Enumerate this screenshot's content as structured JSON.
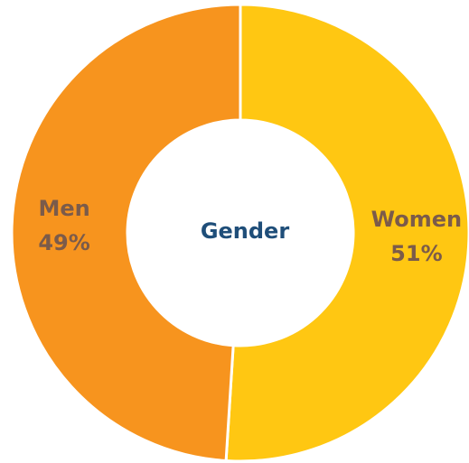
{
  "chart_data": {
    "type": "donut",
    "center_label": "Gender",
    "categories": [
      "Women",
      "Men"
    ],
    "values": [
      51,
      49
    ],
    "value_labels": [
      "51%",
      "49%"
    ],
    "colors": [
      "#FFC712",
      "#F7941E"
    ]
  }
}
